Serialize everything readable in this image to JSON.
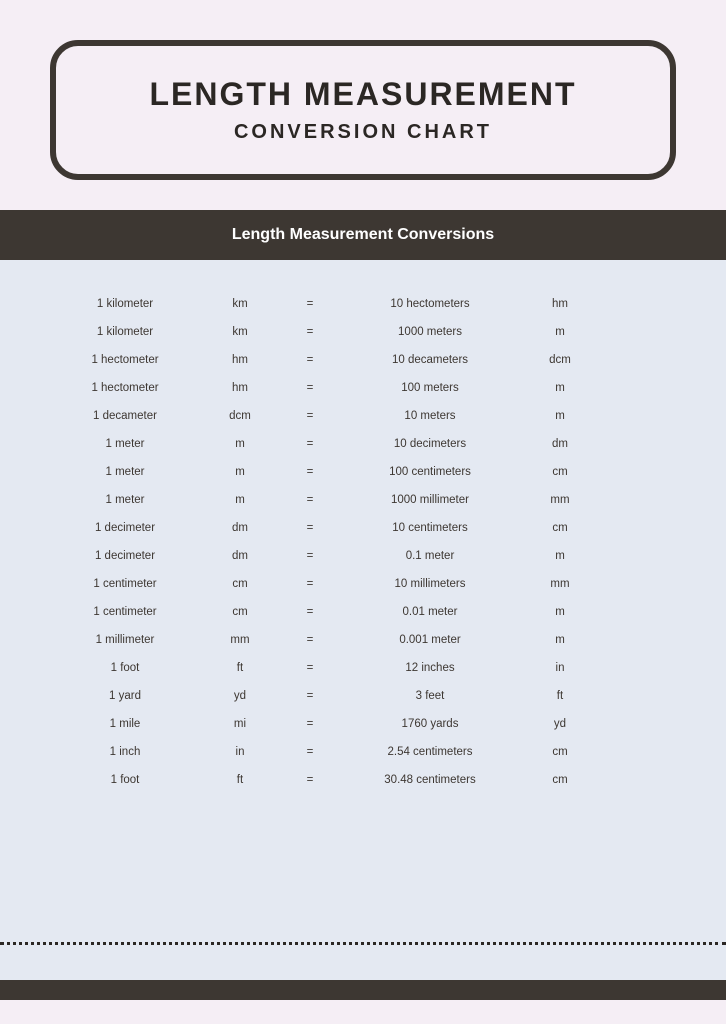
{
  "colors": {
    "header_bg": "#f5eef5",
    "border": "#3d3732",
    "section_header_bg": "#3d3732",
    "section_header_text": "#ffffff",
    "table_bg": "#e4e9f2",
    "text": "#2b2724",
    "row_text": "#3d3732"
  },
  "typography": {
    "main_title_size": 32,
    "sub_title_size": 20,
    "section_header_size": 16,
    "row_size": 11.5
  },
  "title": {
    "main": "LENGTH MEASUREMENT",
    "sub": "CONVERSION CHART"
  },
  "section_header": "Length Measurement Conversions",
  "table": {
    "rows": [
      {
        "from": "1 kilometer",
        "from_abbr": "km",
        "eq": "=",
        "to": "10 hectometers",
        "to_abbr": "hm"
      },
      {
        "from": "1 kilometer",
        "from_abbr": "km",
        "eq": "=",
        "to": "1000 meters",
        "to_abbr": "m"
      },
      {
        "from": "1 hectometer",
        "from_abbr": "hm",
        "eq": "=",
        "to": "10 decameters",
        "to_abbr": "dcm"
      },
      {
        "from": "1 hectometer",
        "from_abbr": "hm",
        "eq": "=",
        "to": "100 meters",
        "to_abbr": "m"
      },
      {
        "from": "1 decameter",
        "from_abbr": "dcm",
        "eq": "=",
        "to": "10 meters",
        "to_abbr": "m"
      },
      {
        "from": "1 meter",
        "from_abbr": "m",
        "eq": "=",
        "to": "10 decimeters",
        "to_abbr": "dm"
      },
      {
        "from": "1 meter",
        "from_abbr": "m",
        "eq": "=",
        "to": "100 centimeters",
        "to_abbr": "cm"
      },
      {
        "from": "1 meter",
        "from_abbr": "m",
        "eq": "=",
        "to": "1000 millimeter",
        "to_abbr": "mm"
      },
      {
        "from": "1 decimeter",
        "from_abbr": "dm",
        "eq": "=",
        "to": "10 centimeters",
        "to_abbr": "cm"
      },
      {
        "from": "1 decimeter",
        "from_abbr": "dm",
        "eq": "=",
        "to": "0.1 meter",
        "to_abbr": "m"
      },
      {
        "from": "1 centimeter",
        "from_abbr": "cm",
        "eq": "=",
        "to": "10 millimeters",
        "to_abbr": "mm"
      },
      {
        "from": "1 centimeter",
        "from_abbr": "cm",
        "eq": "=",
        "to": "0.01 meter",
        "to_abbr": "m"
      },
      {
        "from": "1 millimeter",
        "from_abbr": "mm",
        "eq": "=",
        "to": "0.001 meter",
        "to_abbr": "m"
      },
      {
        "from": "1 foot",
        "from_abbr": "ft",
        "eq": "=",
        "to": "12 inches",
        "to_abbr": "in"
      },
      {
        "from": "1 yard",
        "from_abbr": "yd",
        "eq": "=",
        "to": "3 feet",
        "to_abbr": "ft"
      },
      {
        "from": "1 mile",
        "from_abbr": "mi",
        "eq": "=",
        "to": "1760 yards",
        "to_abbr": "yd"
      },
      {
        "from": "1 inch",
        "from_abbr": "in",
        "eq": "=",
        "to": "2.54 centimeters",
        "to_abbr": "cm"
      },
      {
        "from": "1 foot",
        "from_abbr": "ft",
        "eq": "=",
        "to": "30.48 centimeters",
        "to_abbr": "cm"
      }
    ]
  }
}
